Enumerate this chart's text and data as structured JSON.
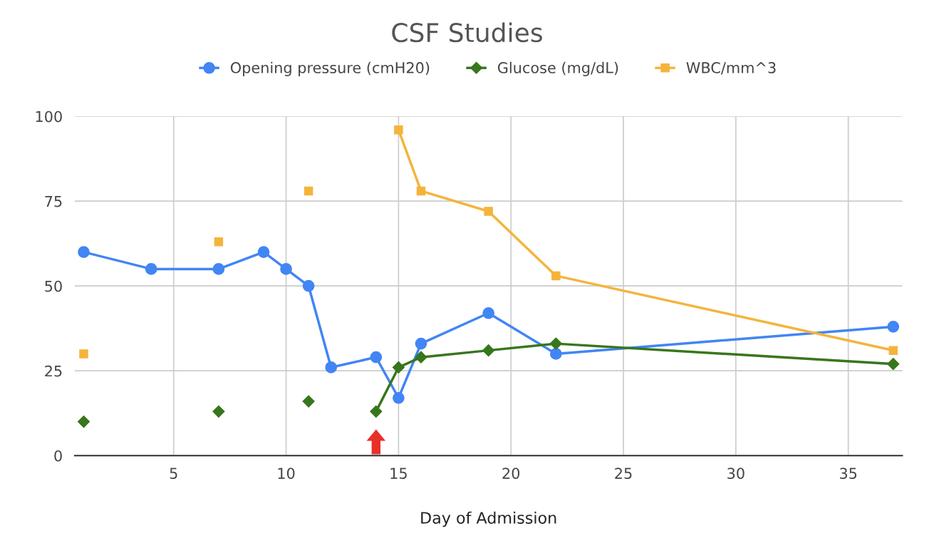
{
  "chart_data": {
    "type": "line",
    "title": "CSF Studies",
    "xlabel": "Day of Admission",
    "x": [
      1,
      4,
      7,
      9,
      10,
      11,
      12,
      14,
      15,
      16,
      19,
      22,
      37
    ],
    "series": [
      {
        "name": "Opening pressure (cmH20)",
        "color": "#4285f4",
        "marker": "circle",
        "values": [
          60,
          55,
          55,
          60,
          55,
          50,
          26,
          29,
          17,
          33,
          42,
          30,
          38
        ]
      },
      {
        "name": "Glucose (mg/dL)",
        "color": "#38761d",
        "marker": "diamond",
        "values": [
          10,
          null,
          13,
          null,
          null,
          16,
          null,
          13,
          26,
          29,
          31,
          33,
          27
        ]
      },
      {
        "name": "WBC/mm^3",
        "color": "#f4b43c",
        "marker": "square",
        "values": [
          30,
          null,
          63,
          null,
          null,
          78,
          null,
          null,
          96,
          78,
          72,
          53,
          31
        ]
      }
    ],
    "xlim": [
      0.6,
      37.4
    ],
    "xticks": [
      5,
      10,
      15,
      20,
      25,
      30,
      35
    ],
    "ylim": [
      0,
      100
    ],
    "yticks": [
      0,
      25,
      50,
      75,
      100
    ],
    "grid": true,
    "legend": "top",
    "line_style": "solid"
  }
}
